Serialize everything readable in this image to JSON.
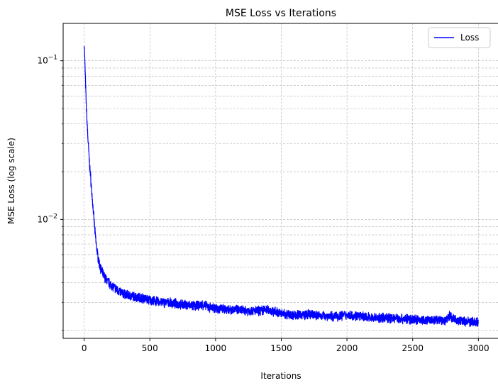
{
  "chart_data": {
    "type": "line",
    "title": "MSE Loss vs Iterations",
    "xlabel": "Iterations",
    "ylabel": "MSE Loss (log scale)",
    "xlim": [
      -160,
      3160
    ],
    "ylim": [
      0.00178,
      0.172
    ],
    "y_scale": "log",
    "grid": true,
    "legend_position": "top-right",
    "x_ticks": [
      0,
      500,
      1000,
      1500,
      2000,
      2500,
      3000
    ],
    "x_tick_labels": [
      "0",
      "500",
      "1000",
      "1500",
      "2000",
      "2500",
      "3000"
    ],
    "y_major_ticks": [
      0.01,
      0.1
    ],
    "y_major_labels": [
      {
        "base": "10",
        "exp": "−2"
      },
      {
        "base": "10",
        "exp": "−1"
      }
    ],
    "y_minor_ticks": [
      0.002,
      0.003,
      0.004,
      0.005,
      0.006,
      0.007,
      0.008,
      0.009,
      0.02,
      0.03,
      0.04,
      0.05,
      0.06,
      0.07,
      0.08,
      0.09
    ],
    "series": [
      {
        "name": "Loss",
        "color": "#0000ff",
        "x": [
          0,
          5,
          10,
          15,
          20,
          25,
          30,
          40,
          50,
          60,
          70,
          80,
          90,
          100,
          110,
          120,
          130,
          150,
          175,
          200,
          225,
          250,
          275,
          300,
          350,
          400,
          450,
          500,
          550,
          600,
          650,
          700,
          750,
          800,
          850,
          900,
          950,
          1000,
          1100,
          1200,
          1300,
          1400,
          1500,
          1600,
          1700,
          1800,
          1900,
          2000,
          2100,
          2200,
          2300,
          2400,
          2500,
          2600,
          2700,
          2750,
          2780,
          2800,
          2850,
          2900,
          2950,
          3000
        ],
        "y": [
          0.13,
          0.1,
          0.075,
          0.055,
          0.045,
          0.037,
          0.031,
          0.023,
          0.018,
          0.0142,
          0.0112,
          0.0088,
          0.0072,
          0.0062,
          0.0055,
          0.0051,
          0.0048,
          0.0044,
          0.0041,
          0.0039,
          0.00375,
          0.0036,
          0.0035,
          0.0034,
          0.0033,
          0.00325,
          0.0032,
          0.0031,
          0.00305,
          0.003,
          0.00298,
          0.00295,
          0.0029,
          0.00288,
          0.00285,
          0.0029,
          0.0028,
          0.00275,
          0.00272,
          0.00268,
          0.00265,
          0.0027,
          0.00255,
          0.0025,
          0.00252,
          0.00248,
          0.00245,
          0.0025,
          0.00245,
          0.0024,
          0.0024,
          0.00238,
          0.00235,
          0.0023,
          0.00232,
          0.0023,
          0.0025,
          0.0024,
          0.0023,
          0.00228,
          0.00226,
          0.00225
        ],
        "noise_amplitude": 0.06
      }
    ]
  }
}
